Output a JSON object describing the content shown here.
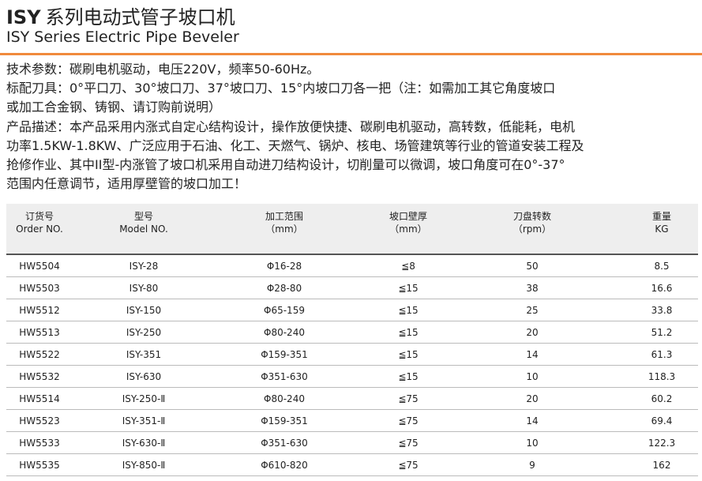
{
  "header": {
    "title_code": "ISY",
    "title": "系列电动式管子坡口机",
    "subtitle": "ISY Series Electric Pipe Beveler"
  },
  "description": {
    "lines": [
      "技术参数：碳刷电机驱动，电压220V，频率50-60Hz。",
      "标配刀具：0°平口刀、30°坡口刀、37°坡口刀、15°内坡口刀各一把（注：如需加工其它角度坡口",
      "或加工合金钢、铸钢、请订购前说明）",
      "产品描述：本产品采用内涨式自定心结构设计，操作放便快捷、碳刷电机驱动，高转数，低能耗，电机",
      "功率1.5KW-1.8KW、广泛应用于石油、化工、天燃气、锅炉、核电、场管建筑等行业的管道安装工程及",
      "抢修作业、其中II型-内涨管了坡口机采用自动进刀结构设计，切削量可以微调，坡口角度可在0°-37°",
      "范围内任意调节，适用厚壁管的坡口加工！"
    ]
  },
  "table": {
    "columns": [
      {
        "zh": "订货号",
        "en": "Order NO."
      },
      {
        "zh": "型号",
        "en": "Model NO."
      },
      {
        "zh": "加工范围",
        "en": "（mm）"
      },
      {
        "zh": "坡口壁厚",
        "en": "（mm）"
      },
      {
        "zh": "刀盘转数",
        "en": "（rpm）"
      },
      {
        "zh": "重量",
        "en": "KG"
      }
    ],
    "rows": [
      [
        "HW5504",
        "ISY-28",
        "Φ16-28",
        "≦8",
        "50",
        "8.5"
      ],
      [
        "HW5503",
        "ISY-80",
        "Φ28-80",
        "≦15",
        "38",
        "16.6"
      ],
      [
        "HW5512",
        "ISY-150",
        "Φ65-159",
        "≦15",
        "25",
        "33.8"
      ],
      [
        "HW5513",
        "ISY-250",
        "Φ80-240",
        "≦15",
        "20",
        "51.2"
      ],
      [
        "HW5522",
        "ISY-351",
        "Φ159-351",
        "≦15",
        "14",
        "61.3"
      ],
      [
        "HW5532",
        "ISY-630",
        "Φ351-630",
        "≦15",
        "10",
        "118.3"
      ],
      [
        "HW5514",
        "ISY-250-Ⅱ",
        "Φ80-240",
        "≦75",
        "20",
        "60.2"
      ],
      [
        "HW5523",
        "ISY-351-Ⅱ",
        "Φ159-351",
        "≦75",
        "14",
        "69.4"
      ],
      [
        "HW5533",
        "ISY-630-Ⅱ",
        "Φ351-630",
        "≦75",
        "10",
        "122.3"
      ],
      [
        "HW5535",
        "ISY-850-Ⅱ",
        "Φ610-820",
        "≦75",
        "9",
        "162"
      ]
    ]
  }
}
